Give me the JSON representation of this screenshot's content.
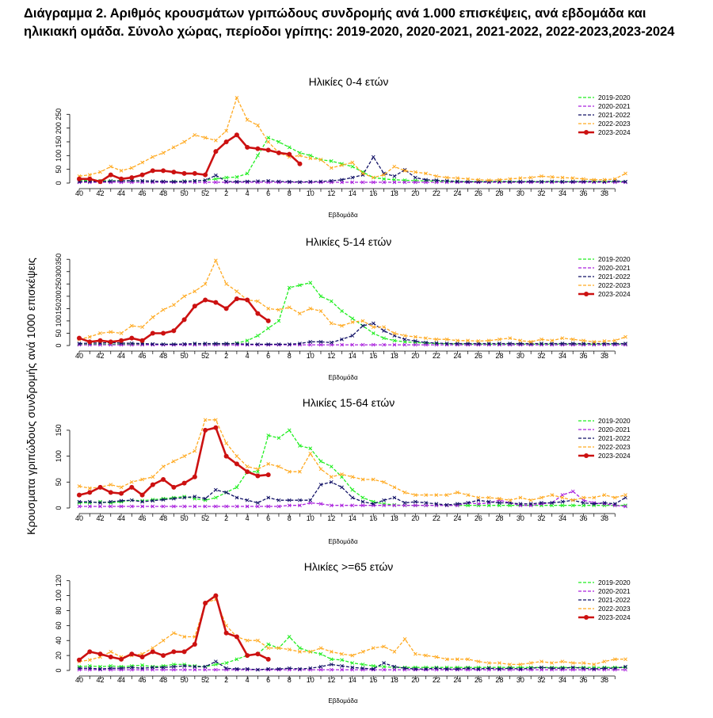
{
  "page": {
    "title": "Διάγραμμα 2. Αριθμός κρουσμάτων γριπώδους συνδρομής ανά 1.000 επισκέψεις, ανά εβδομάδα και ηλικιακή ομάδα. Σύνολο χώρας, περίοδοι γρίπης: 2019-2020, 2020-2021, 2021-2022, 2022-2023,2023-2024",
    "shared_ylabel": "Κρουσματα γριπώδους συνδρομής ανά 1000 επισκέψεις"
  },
  "colors": {
    "2019-2020": "#22ee22",
    "2020-2021": "#aa22dd",
    "2021-2022": "#111166",
    "2022-2023": "#ffaa22",
    "2023-2024": "#cc1111"
  },
  "chart_data": [
    {
      "type": "line",
      "title": "Ηλικίες 0-4 ετών",
      "xlabel": "Εβδομάδα",
      "ylabel": "",
      "x_tick_labels": [
        "40",
        "42",
        "44",
        "46",
        "48",
        "50",
        "52",
        "2",
        "4",
        "6",
        "8",
        "10",
        "12",
        "14",
        "16",
        "18",
        "20",
        "22",
        "24",
        "26",
        "28",
        "30",
        "32",
        "34",
        "36",
        "38"
      ],
      "y_ticks": [
        0,
        50,
        100,
        150,
        200,
        250
      ],
      "ylim": [
        0,
        320
      ],
      "legend": "top-right",
      "series": [
        {
          "name": "2019-2020",
          "values": [
            10,
            9,
            8,
            8,
            9,
            8,
            7,
            6,
            5,
            6,
            7,
            8,
            10,
            15,
            20,
            22,
            35,
            100,
            165,
            150,
            130,
            110,
            100,
            85,
            80,
            70,
            60,
            40,
            20,
            15,
            12,
            10,
            9,
            8,
            7,
            6,
            5,
            5,
            5,
            5,
            5,
            5,
            5,
            5,
            5,
            5,
            5,
            5,
            5,
            5,
            5,
            5,
            5
          ]
        },
        {
          "name": "2020-2021",
          "values": [
            3,
            3,
            3,
            3,
            3,
            3,
            3,
            3,
            3,
            3,
            3,
            3,
            3,
            3,
            3,
            3,
            3,
            3,
            3,
            3,
            3,
            3,
            3,
            3,
            3,
            3,
            3,
            3,
            3,
            3,
            3,
            3,
            3,
            3,
            3,
            3,
            3,
            3,
            3,
            3,
            3,
            3,
            3,
            3,
            3,
            3,
            3,
            3,
            3,
            3,
            3,
            3,
            3
          ]
        },
        {
          "name": "2021-2022",
          "values": [
            5,
            6,
            5,
            7,
            8,
            9,
            8,
            7,
            6,
            5,
            6,
            8,
            10,
            28,
            6,
            5,
            6,
            7,
            8,
            6,
            5,
            4,
            5,
            6,
            8,
            12,
            20,
            30,
            95,
            35,
            25,
            48,
            20,
            12,
            10,
            8,
            6,
            5,
            5,
            5,
            6,
            5,
            5,
            6,
            5,
            6,
            5,
            5,
            6,
            6,
            5,
            8,
            5
          ]
        },
        {
          "name": "2022-2023",
          "values": [
            25,
            30,
            40,
            60,
            45,
            55,
            75,
            95,
            110,
            130,
            150,
            175,
            165,
            155,
            190,
            310,
            230,
            210,
            150,
            110,
            95,
            100,
            90,
            85,
            55,
            65,
            75,
            35,
            20,
            30,
            60,
            45,
            40,
            35,
            25,
            20,
            18,
            15,
            12,
            10,
            12,
            15,
            18,
            20,
            25,
            22,
            20,
            18,
            15,
            12,
            12,
            15,
            35
          ]
        },
        {
          "name": "2023-2024",
          "values": [
            15,
            15,
            5,
            30,
            15,
            20,
            30,
            45,
            45,
            40,
            35,
            35,
            30,
            115,
            150,
            175,
            130,
            125,
            120,
            110,
            105,
            70
          ]
        }
      ]
    },
    {
      "type": "line",
      "title": "Ηλικίες 5-14 ετών",
      "xlabel": "Εβδομάδα",
      "ylabel": "",
      "x_tick_labels": [
        "40",
        "42",
        "44",
        "46",
        "48",
        "50",
        "52",
        "2",
        "4",
        "6",
        "8",
        "10",
        "12",
        "14",
        "16",
        "18",
        "20",
        "22",
        "24",
        "26",
        "28",
        "30",
        "32",
        "34",
        "36",
        "38"
      ],
      "y_ticks": [
        0,
        50,
        100,
        150,
        200,
        250,
        300,
        350
      ],
      "ylim": [
        0,
        370
      ],
      "legend": "top-right",
      "series": [
        {
          "name": "2019-2020",
          "values": [
            5,
            5,
            5,
            5,
            5,
            5,
            5,
            5,
            5,
            5,
            5,
            5,
            5,
            5,
            5,
            10,
            20,
            40,
            70,
            100,
            235,
            245,
            255,
            200,
            180,
            140,
            110,
            80,
            50,
            30,
            20,
            15,
            12,
            10,
            8,
            7,
            6,
            5,
            5,
            5,
            5,
            5,
            5,
            5,
            5,
            5,
            5,
            5,
            5,
            5,
            5,
            5,
            5
          ]
        },
        {
          "name": "2020-2021",
          "values": [
            3,
            3,
            3,
            3,
            3,
            3,
            3,
            3,
            3,
            3,
            3,
            3,
            3,
            3,
            3,
            3,
            3,
            3,
            3,
            3,
            3,
            3,
            3,
            3,
            3,
            3,
            3,
            3,
            3,
            3,
            3,
            3,
            3,
            3,
            3,
            3,
            3,
            3,
            3,
            3,
            3,
            3,
            3,
            3,
            3,
            3,
            3,
            3,
            3,
            3,
            3,
            3,
            3
          ]
        },
        {
          "name": "2021-2022",
          "values": [
            8,
            10,
            10,
            12,
            10,
            9,
            8,
            6,
            5,
            5,
            6,
            8,
            8,
            8,
            8,
            8,
            5,
            5,
            5,
            5,
            5,
            8,
            15,
            15,
            12,
            25,
            40,
            80,
            90,
            60,
            40,
            25,
            18,
            12,
            10,
            8,
            8,
            8,
            8,
            8,
            8,
            8,
            8,
            8,
            8,
            8,
            8,
            8,
            8,
            8,
            8,
            8,
            8
          ]
        },
        {
          "name": "2022-2023",
          "values": [
            25,
            35,
            50,
            55,
            50,
            80,
            75,
            115,
            145,
            165,
            200,
            220,
            250,
            345,
            250,
            220,
            185,
            180,
            150,
            145,
            155,
            130,
            150,
            140,
            90,
            80,
            95,
            100,
            75,
            75,
            50,
            40,
            35,
            30,
            25,
            25,
            20,
            20,
            18,
            20,
            25,
            30,
            20,
            15,
            25,
            20,
            30,
            25,
            20,
            15,
            18,
            20,
            35
          ]
        },
        {
          "name": "2023-2024",
          "values": [
            30,
            15,
            20,
            15,
            20,
            30,
            20,
            50,
            50,
            60,
            105,
            160,
            185,
            175,
            150,
            190,
            185,
            130,
            100
          ]
        }
      ]
    },
    {
      "type": "line",
      "title": "Ηλικίες 15-64 ετών",
      "xlabel": "Εβδομάδα",
      "ylabel": "",
      "x_tick_labels": [
        "40",
        "42",
        "44",
        "46",
        "48",
        "50",
        "52",
        "2",
        "4",
        "6",
        "8",
        "10",
        "12",
        "14",
        "16",
        "18",
        "20",
        "22",
        "24",
        "26",
        "28",
        "30",
        "32",
        "34",
        "36",
        "38"
      ],
      "y_ticks": [
        0,
        50,
        100,
        150
      ],
      "ylim": [
        0,
        185
      ],
      "legend": "top-right",
      "series": [
        {
          "name": "2019-2020",
          "values": [
            10,
            10,
            12,
            10,
            12,
            15,
            14,
            16,
            18,
            20,
            22,
            18,
            15,
            20,
            30,
            40,
            70,
            70,
            140,
            135,
            150,
            120,
            115,
            90,
            80,
            60,
            35,
            20,
            12,
            8,
            6,
            5,
            5,
            5,
            5,
            5,
            5,
            5,
            5,
            5,
            5,
            5,
            5,
            5,
            5,
            5,
            5,
            5,
            5,
            5,
            5,
            5,
            5
          ]
        },
        {
          "name": "2020-2021",
          "values": [
            3,
            3,
            3,
            3,
            3,
            3,
            3,
            3,
            3,
            3,
            3,
            3,
            3,
            3,
            3,
            3,
            3,
            3,
            3,
            3,
            5,
            5,
            10,
            8,
            5,
            5,
            5,
            5,
            5,
            5,
            5,
            5,
            5,
            5,
            5,
            5,
            5,
            10,
            8,
            10,
            15,
            10,
            5,
            5,
            8,
            10,
            25,
            32,
            15,
            10,
            8,
            5,
            3
          ]
        },
        {
          "name": "2021-2022",
          "values": [
            12,
            12,
            10,
            12,
            14,
            15,
            12,
            14,
            16,
            18,
            20,
            22,
            18,
            35,
            30,
            20,
            15,
            10,
            20,
            15,
            15,
            15,
            15,
            45,
            50,
            40,
            20,
            12,
            8,
            15,
            20,
            10,
            12,
            10,
            8,
            6,
            8,
            10,
            15,
            12,
            10,
            10,
            8,
            8,
            10,
            10,
            12,
            15,
            10,
            8,
            10,
            8,
            20
          ]
        },
        {
          "name": "2022-2023",
          "values": [
            42,
            38,
            40,
            45,
            40,
            50,
            55,
            60,
            80,
            90,
            100,
            110,
            170,
            170,
            125,
            100,
            80,
            75,
            85,
            80,
            70,
            70,
            105,
            75,
            60,
            65,
            60,
            55,
            55,
            50,
            40,
            30,
            25,
            25,
            25,
            25,
            30,
            25,
            20,
            20,
            18,
            15,
            20,
            15,
            20,
            25,
            20,
            15,
            20,
            20,
            25,
            20,
            25
          ]
        },
        {
          "name": "2023-2024",
          "values": [
            25,
            30,
            40,
            30,
            28,
            40,
            25,
            45,
            55,
            40,
            48,
            60,
            150,
            155,
            100,
            85,
            70,
            62,
            64
          ]
        }
      ]
    },
    {
      "type": "line",
      "title": "Ηλικίες >=65 ετών",
      "xlabel": "Εβδομάδα",
      "ylabel": "",
      "x_tick_labels": [
        "40",
        "42",
        "44",
        "46",
        "48",
        "50",
        "52",
        "2",
        "4",
        "6",
        "8",
        "10",
        "12",
        "14",
        "16",
        "18",
        "20",
        "22",
        "24",
        "26",
        "28",
        "30",
        "32",
        "34",
        "36",
        "38"
      ],
      "y_ticks": [
        0,
        20,
        40,
        60,
        80,
        100,
        120
      ],
      "ylim": [
        0,
        125
      ],
      "legend": "top-right",
      "series": [
        {
          "name": "2019-2020",
          "values": [
            5,
            6,
            5,
            6,
            5,
            6,
            7,
            5,
            6,
            8,
            8,
            6,
            5,
            8,
            10,
            15,
            20,
            22,
            35,
            30,
            45,
            30,
            25,
            22,
            15,
            14,
            10,
            8,
            6,
            5,
            4,
            4,
            4,
            4,
            4,
            4,
            4,
            4,
            4,
            4,
            4,
            4,
            4,
            4,
            4,
            4,
            4,
            4,
            4,
            4,
            4,
            4,
            4
          ]
        },
        {
          "name": "2020-2021",
          "values": [
            1,
            1,
            1,
            1,
            1,
            1,
            1,
            1,
            1,
            1,
            1,
            1,
            1,
            1,
            1,
            1,
            1,
            1,
            1,
            1,
            1,
            1,
            1,
            1,
            1,
            1,
            1,
            1,
            1,
            1,
            1,
            1,
            1,
            1,
            1,
            1,
            1,
            1,
            1,
            1,
            1,
            1,
            1,
            1,
            1,
            1,
            1,
            1,
            1,
            1,
            1,
            1,
            1
          ]
        },
        {
          "name": "2021-2022",
          "values": [
            3,
            3,
            2,
            3,
            3,
            4,
            3,
            4,
            4,
            5,
            6,
            5,
            5,
            12,
            3,
            2,
            2,
            1,
            2,
            2,
            3,
            2,
            3,
            5,
            8,
            6,
            4,
            3,
            2,
            10,
            5,
            3,
            2,
            2,
            3,
            2,
            2,
            3,
            2,
            3,
            2,
            3,
            2,
            3,
            4,
            3,
            3,
            4,
            3,
            2,
            3,
            3,
            5
          ]
        },
        {
          "name": "2022-2023",
          "values": [
            12,
            14,
            18,
            25,
            18,
            20,
            22,
            30,
            40,
            50,
            45,
            45,
            90,
            95,
            60,
            45,
            40,
            40,
            30,
            30,
            28,
            25,
            25,
            30,
            25,
            22,
            20,
            25,
            30,
            32,
            25,
            42,
            22,
            20,
            18,
            15,
            15,
            15,
            12,
            10,
            10,
            8,
            8,
            10,
            12,
            10,
            12,
            10,
            10,
            8,
            12,
            15,
            15
          ]
        },
        {
          "name": "2023-2024",
          "values": [
            14,
            25,
            22,
            18,
            15,
            22,
            18,
            25,
            20,
            25,
            25,
            35,
            90,
            100,
            50,
            45,
            20,
            22,
            15
          ]
        }
      ]
    }
  ]
}
